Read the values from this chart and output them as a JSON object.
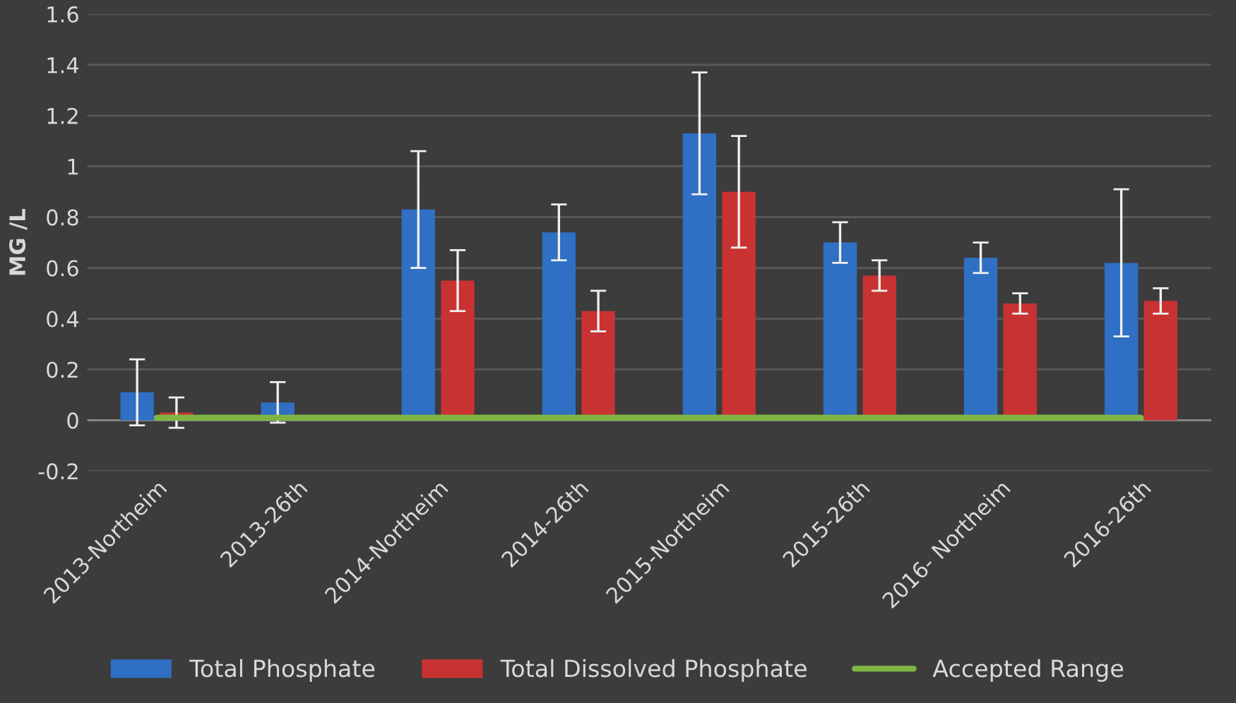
{
  "chart_data": {
    "type": "bar",
    "ylabel": "MG /L",
    "categories": [
      "2013-Northeim",
      "2013-26th",
      "2014-Northeim",
      "2014-26th",
      "2015-Northeim",
      "2015-26th",
      "2016- Northeim",
      "2016-26th"
    ],
    "series": [
      {
        "name": "Total Phosphate",
        "color": "#2f6fc4",
        "values": [
          0.11,
          0.07,
          0.83,
          0.74,
          1.13,
          0.7,
          0.64,
          0.62
        ],
        "errors": [
          0.13,
          0.08,
          0.23,
          0.11,
          0.24,
          0.08,
          0.06,
          0.29
        ]
      },
      {
        "name": "Total Dissolved Phosphate",
        "color": "#c93232",
        "values": [
          0.03,
          null,
          0.55,
          0.43,
          0.9,
          0.57,
          0.46,
          0.47
        ],
        "errors": [
          0.06,
          null,
          0.12,
          0.08,
          0.22,
          0.06,
          0.04,
          0.05
        ]
      },
      {
        "name": "Accepted Range",
        "type": "line",
        "color": "#7fb642",
        "values": [
          0.01,
          0.01,
          0.01,
          0.01,
          0.01,
          0.01,
          0.01,
          0.01
        ]
      }
    ],
    "ylim": [
      -0.2,
      1.6
    ],
    "yticks": [
      -0.2,
      0,
      0.2,
      0.4,
      0.6,
      0.8,
      1,
      1.2,
      1.4,
      1.6
    ],
    "grid": "y",
    "legend": "bottom"
  }
}
